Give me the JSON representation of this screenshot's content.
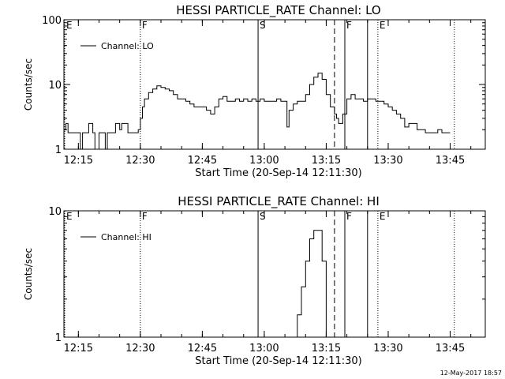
{
  "footer": {
    "timestamp": "12-May-2017 18:57"
  },
  "chart_data": [
    {
      "type": "line",
      "title": "HESSI PARTICLE_RATE Channel: LO",
      "xlabel": "Start Time (20-Sep-14 12:11:30)",
      "ylabel": "Counts/sec",
      "yscale": "log",
      "xlim": [
        "12:11:30",
        "13:53:30"
      ],
      "ylim": [
        1,
        100
      ],
      "xticks": [
        "12:15",
        "12:30",
        "12:45",
        "13:00",
        "13:15",
        "13:30",
        "13:45"
      ],
      "yticks": [
        "1",
        "10",
        "100"
      ],
      "legend": {
        "placement": "top-left",
        "entries": [
          "Channel: LO"
        ]
      },
      "grid": false,
      "markers": [
        {
          "time": "12:11:30",
          "label": "E",
          "style": "dotted"
        },
        {
          "time": "12:30:00",
          "label": "F",
          "style": "dotted"
        },
        {
          "time": "12:58:30",
          "label": "S",
          "style": "solid"
        },
        {
          "time": "13:17:00",
          "label": "",
          "style": "dashed"
        },
        {
          "time": "13:19:30",
          "label": "F",
          "style": "solid"
        },
        {
          "time": "13:25:00",
          "label": "",
          "style": "solid"
        },
        {
          "time": "13:27:30",
          "label": "E",
          "style": "dotted"
        },
        {
          "time": "13:46:00",
          "label": "",
          "style": "dotted"
        }
      ],
      "series": [
        {
          "name": "Channel: LO",
          "x": [
            "12:11:30",
            "12:12:00",
            "12:12:30",
            "12:13:00",
            "12:14:00",
            "12:15:00",
            "12:15:30",
            "12:16:00",
            "12:17:00",
            "12:17:30",
            "12:18:30",
            "12:19:00",
            "12:20:00",
            "12:21:00",
            "12:21:30",
            "12:22:00",
            "12:23:00",
            "12:23:30",
            "12:24:00",
            "12:25:00",
            "12:25:30",
            "12:26:00",
            "12:27:00",
            "12:28:00",
            "12:28:30",
            "12:29:30",
            "12:30:00",
            "12:30:30",
            "12:31:00",
            "12:32:00",
            "12:33:00",
            "12:34:00",
            "12:35:00",
            "12:36:00",
            "12:37:00",
            "12:38:00",
            "12:39:00",
            "12:40:00",
            "12:41:00",
            "12:42:00",
            "12:43:00",
            "12:44:00",
            "12:45:00",
            "12:46:00",
            "12:47:00",
            "12:48:00",
            "12:49:00",
            "12:50:00",
            "12:51:00",
            "12:52:00",
            "12:53:00",
            "12:54:00",
            "12:55:00",
            "12:56:00",
            "12:57:00",
            "12:58:00",
            "12:59:00",
            "13:00:00",
            "13:01:00",
            "13:02:00",
            "13:03:00",
            "13:04:00",
            "13:05:00",
            "13:05:30",
            "13:06:00",
            "13:07:00",
            "13:08:00",
            "13:09:00",
            "13:10:00",
            "13:11:00",
            "13:12:00",
            "13:13:00",
            "13:14:00",
            "13:15:00",
            "13:16:00",
            "13:17:00",
            "13:17:30",
            "13:18:00",
            "13:19:00",
            "13:20:00",
            "13:21:00",
            "13:22:00",
            "13:23:00",
            "13:24:00",
            "13:25:00",
            "13:26:00",
            "13:27:00",
            "13:28:00",
            "13:29:00",
            "13:30:00",
            "13:31:00",
            "13:32:00",
            "13:33:00",
            "13:34:00",
            "13:35:00",
            "13:36:00",
            "13:37:00",
            "13:38:00",
            "13:39:00",
            "13:40:00",
            "13:41:00",
            "13:42:00",
            "13:43:00",
            "13:44:00",
            "13:45:00"
          ],
          "y": [
            2,
            2.5,
            1.8,
            1.8,
            1.8,
            1.8,
            1,
            1.8,
            1.8,
            2.5,
            1.8,
            1,
            1.8,
            1.8,
            1,
            1.8,
            1.8,
            1.8,
            2.5,
            2,
            2.5,
            2.5,
            1.8,
            1.8,
            1.8,
            2,
            3,
            4.5,
            6,
            7.5,
            8.5,
            9.5,
            9,
            8.5,
            8,
            7,
            6,
            6,
            5.5,
            5,
            4.5,
            4.5,
            4.5,
            4,
            3.5,
            4.5,
            6,
            6.5,
            5.5,
            5.5,
            6,
            5.5,
            6,
            5.5,
            6,
            5.5,
            6,
            5.5,
            5.5,
            5.5,
            6,
            5.5,
            5.5,
            2.2,
            4,
            5,
            5.5,
            5.5,
            7,
            10,
            13,
            15,
            12,
            7,
            4.5,
            3.5,
            3,
            2.5,
            3.5,
            6,
            7,
            6,
            6,
            5.5,
            6,
            6,
            5.5,
            5.5,
            5,
            4.5,
            4,
            3.5,
            3,
            2.2,
            2.5,
            2.5,
            2,
            2,
            1.8,
            1.8,
            1.8,
            2,
            1.8,
            1.8,
            1.8
          ]
        }
      ]
    },
    {
      "type": "line",
      "title": "HESSI PARTICLE_RATE Channel: HI",
      "xlabel": "Start Time (20-Sep-14 12:11:30)",
      "ylabel": "Counts/sec",
      "yscale": "log",
      "xlim": [
        "12:11:30",
        "13:53:30"
      ],
      "ylim": [
        1,
        10
      ],
      "xticks": [
        "12:15",
        "12:30",
        "12:45",
        "13:00",
        "13:15",
        "13:30",
        "13:45"
      ],
      "yticks": [
        "1",
        "10"
      ],
      "legend": {
        "placement": "top-left",
        "entries": [
          "Channel: HI"
        ]
      },
      "grid": false,
      "markers": [
        {
          "time": "12:11:30",
          "label": "E",
          "style": "dotted"
        },
        {
          "time": "12:30:00",
          "label": "F",
          "style": "dotted"
        },
        {
          "time": "12:58:30",
          "label": "S",
          "style": "solid"
        },
        {
          "time": "13:17:00",
          "label": "",
          "style": "dashed"
        },
        {
          "time": "13:19:30",
          "label": "F",
          "style": "solid"
        },
        {
          "time": "13:25:00",
          "label": "",
          "style": "solid"
        },
        {
          "time": "13:27:30",
          "label": "E",
          "style": "dotted"
        },
        {
          "time": "13:46:00",
          "label": "",
          "style": "dotted"
        }
      ],
      "series": [
        {
          "name": "Channel: HI",
          "x": [
            "13:07:00",
            "13:08:00",
            "13:09:00",
            "13:10:00",
            "13:11:00",
            "13:12:00",
            "13:13:00",
            "13:14:00",
            "13:15:00"
          ],
          "y": [
            1,
            1.5,
            2.5,
            4,
            6,
            7,
            7,
            4,
            1
          ]
        }
      ]
    }
  ]
}
